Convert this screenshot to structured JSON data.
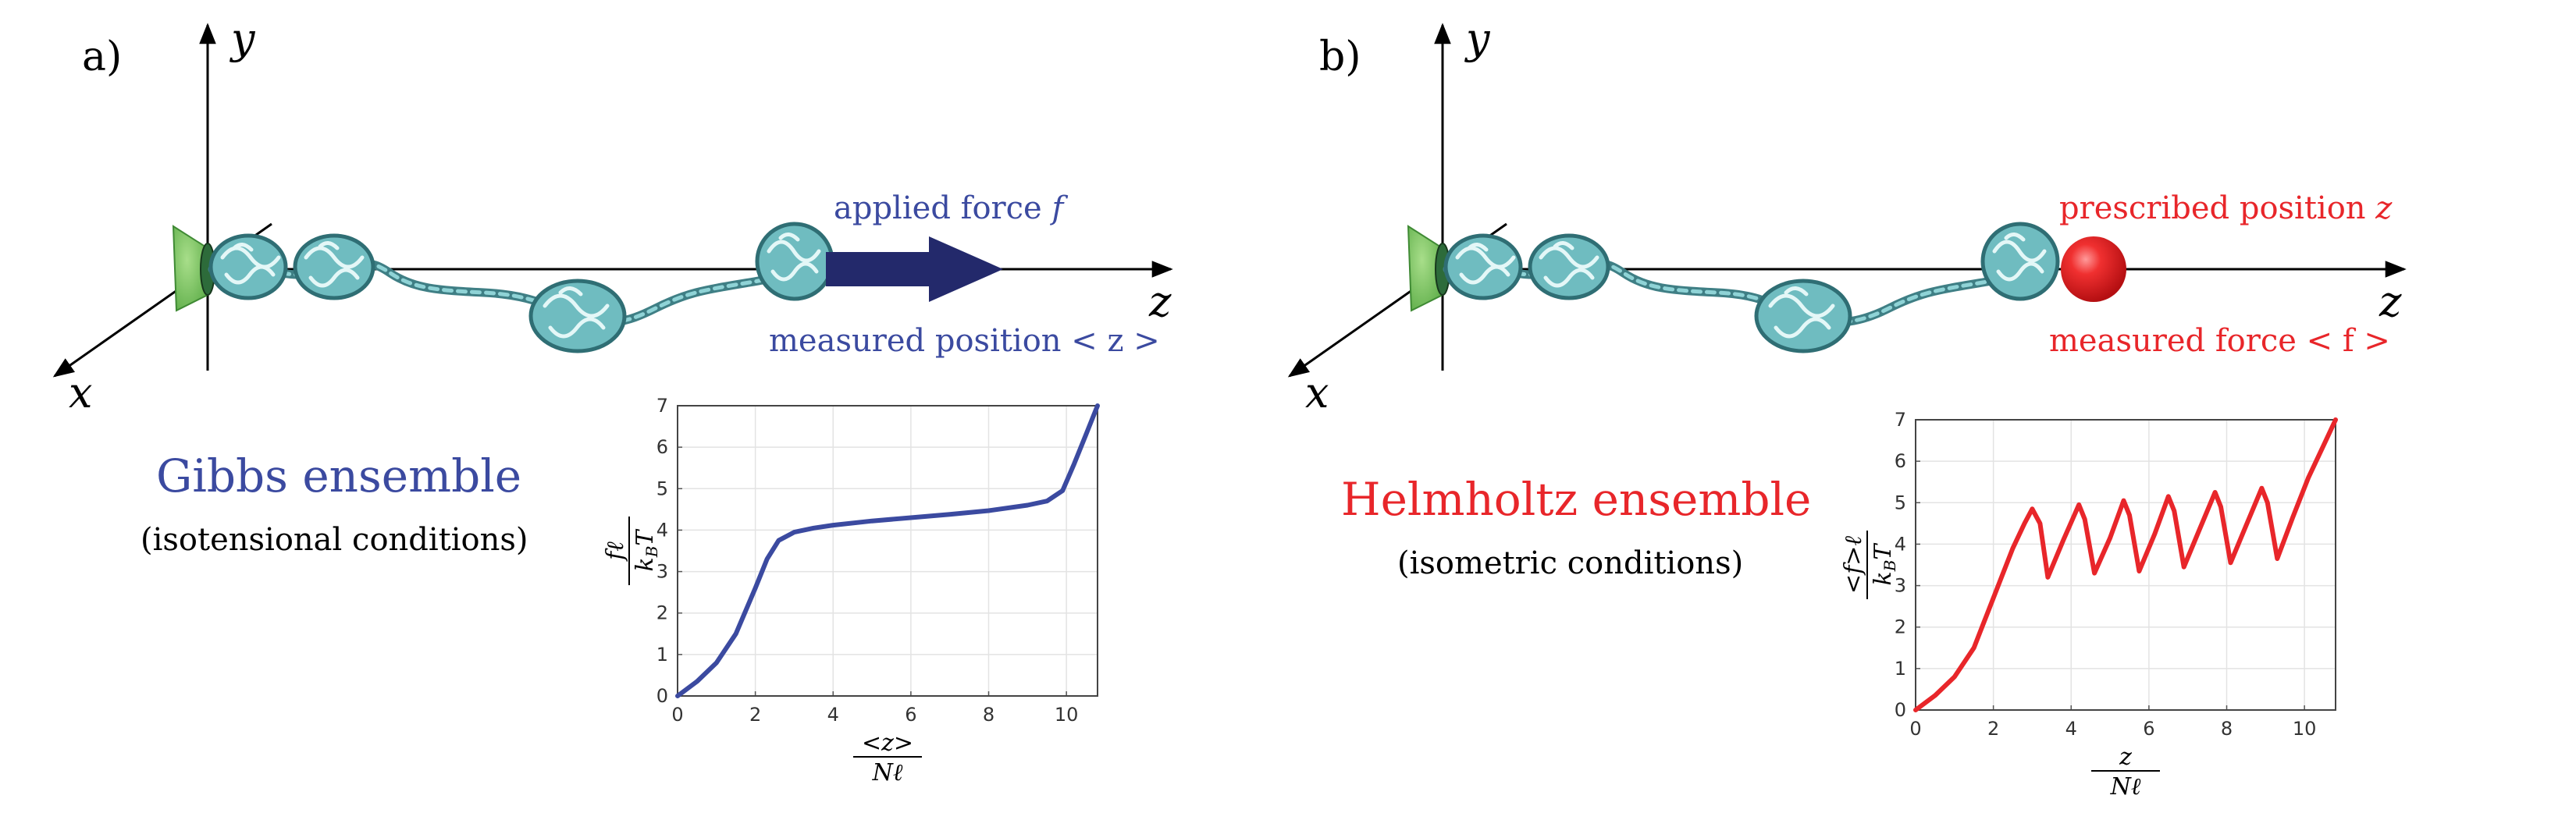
{
  "panels": [
    {
      "id": "a",
      "label": "a)",
      "axis_y": "y",
      "axis_x": "x",
      "axis_z": "z",
      "top_label_text": "applied force ",
      "top_label_var": "f",
      "bottom_label": "measured position < z >",
      "ensemble_title": "Gibbs ensemble",
      "ensemble_subtitle": "(isotensional conditions)",
      "accent_color": "#3b4aa0",
      "arrow_color": "#23296b"
    },
    {
      "id": "b",
      "label": "b)",
      "axis_y": "y",
      "axis_x": "x",
      "axis_z": "z",
      "top_label_text": "prescribed position ",
      "top_label_var": "z",
      "bottom_label": "measured force < f >",
      "ensemble_title": "Helmholtz ensemble",
      "ensemble_subtitle": "(isometric conditions)",
      "accent_color": "#e8262a",
      "sphere_color": "#e8262a"
    }
  ],
  "chart_data": [
    {
      "type": "line",
      "panel": "a",
      "x_label_num": "<z>",
      "x_label_den": "Nℓ",
      "y_label_num": "fℓ",
      "y_label_den": "k_BT",
      "xlim": [
        0,
        10.8
      ],
      "ylim": [
        0,
        7
      ],
      "xticks": [
        "0",
        "2",
        "4",
        "6",
        "8",
        "10"
      ],
      "yticks": [
        "0",
        "1",
        "2",
        "3",
        "4",
        "5",
        "6",
        "7"
      ],
      "grid": true,
      "series": [
        {
          "color": "#3b4aa0",
          "x": [
            0,
            0.5,
            1,
            1.5,
            2,
            2.3,
            2.6,
            3,
            3.5,
            4,
            5,
            6,
            7,
            8,
            9,
            9.5,
            9.9,
            10.2,
            10.5,
            10.8
          ],
          "y": [
            0,
            0.35,
            0.8,
            1.5,
            2.6,
            3.3,
            3.75,
            3.95,
            4.05,
            4.12,
            4.22,
            4.3,
            4.38,
            4.47,
            4.6,
            4.7,
            4.95,
            5.6,
            6.3,
            7.0
          ]
        }
      ]
    },
    {
      "type": "line",
      "panel": "b",
      "x_label_num": "z",
      "x_label_den": "Nℓ",
      "y_label_num": "<f>ℓ",
      "y_label_den": "k_BT",
      "xlim": [
        0,
        10.8
      ],
      "ylim": [
        0,
        7
      ],
      "xticks": [
        "0",
        "2",
        "4",
        "6",
        "8",
        "10"
      ],
      "yticks": [
        "0",
        "1",
        "2",
        "3",
        "4",
        "5",
        "6",
        "7"
      ],
      "grid": true,
      "series": [
        {
          "color": "#e8262a",
          "x": [
            0,
            0.5,
            1,
            1.5,
            2,
            2.5,
            2.8,
            3.0,
            3.2,
            3.4,
            3.8,
            4.2,
            4.35,
            4.6,
            5.0,
            5.35,
            5.5,
            5.75,
            6.15,
            6.5,
            6.65,
            6.9,
            7.3,
            7.7,
            7.85,
            8.1,
            8.5,
            8.9,
            9.05,
            9.3,
            9.7,
            10.1,
            10.5,
            10.8
          ],
          "y": [
            0,
            0.35,
            0.8,
            1.5,
            2.7,
            3.9,
            4.5,
            4.85,
            4.5,
            3.2,
            4.1,
            4.95,
            4.6,
            3.3,
            4.15,
            5.05,
            4.7,
            3.35,
            4.25,
            5.15,
            4.8,
            3.45,
            4.35,
            5.25,
            4.9,
            3.55,
            4.45,
            5.35,
            5.0,
            3.65,
            4.65,
            5.6,
            6.4,
            7.0
          ]
        }
      ]
    }
  ]
}
